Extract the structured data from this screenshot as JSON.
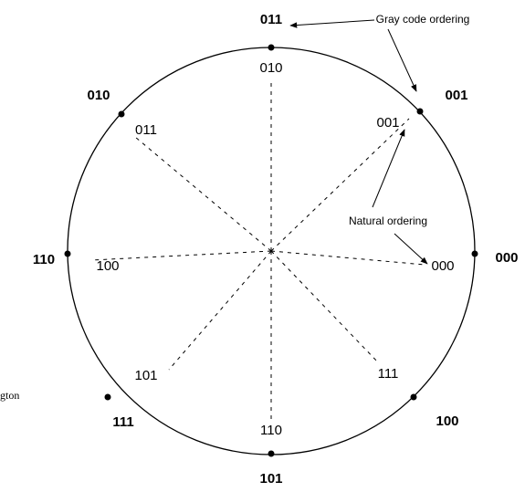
{
  "outer_labels": [
    "011",
    "001",
    "000",
    "100",
    "101",
    "111",
    "110",
    "010"
  ],
  "inner_labels": [
    "010",
    "001",
    "000",
    "111",
    "110",
    "101",
    "100",
    "011"
  ],
  "annotations": {
    "gray": "Gray code ordering",
    "natural": "Natural ordering"
  },
  "side_text": "gton"
}
